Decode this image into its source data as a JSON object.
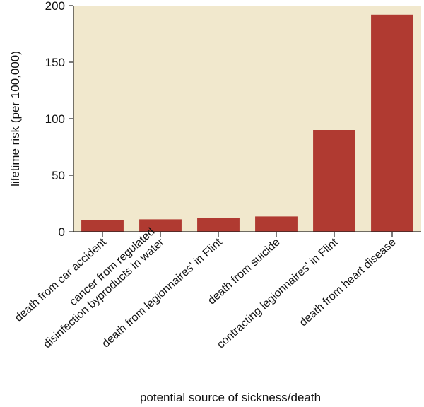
{
  "chart_data": {
    "type": "bar",
    "categories": [
      [
        "death from car accident"
      ],
      [
        "cancer from regulated",
        "disinfection byproducts in water"
      ],
      [
        "death from legionnaires' in Flint"
      ],
      [
        "death from suicide"
      ],
      [
        "contracting legionnaires' in Flint"
      ],
      [
        "death from heart disease"
      ]
    ],
    "values": [
      10.5,
      11,
      12,
      13.5,
      90,
      192
    ],
    "xlabel": "potential source of sickness/death",
    "ylabel": "lifetime risk (per 100,000)",
    "ylim": [
      0,
      200
    ],
    "yticks": [
      0,
      50,
      100,
      150,
      200
    ],
    "grid": false,
    "colors": {
      "plot_background": "#F1E8CD",
      "bar": "#B03A31",
      "axis": "#222222"
    }
  }
}
